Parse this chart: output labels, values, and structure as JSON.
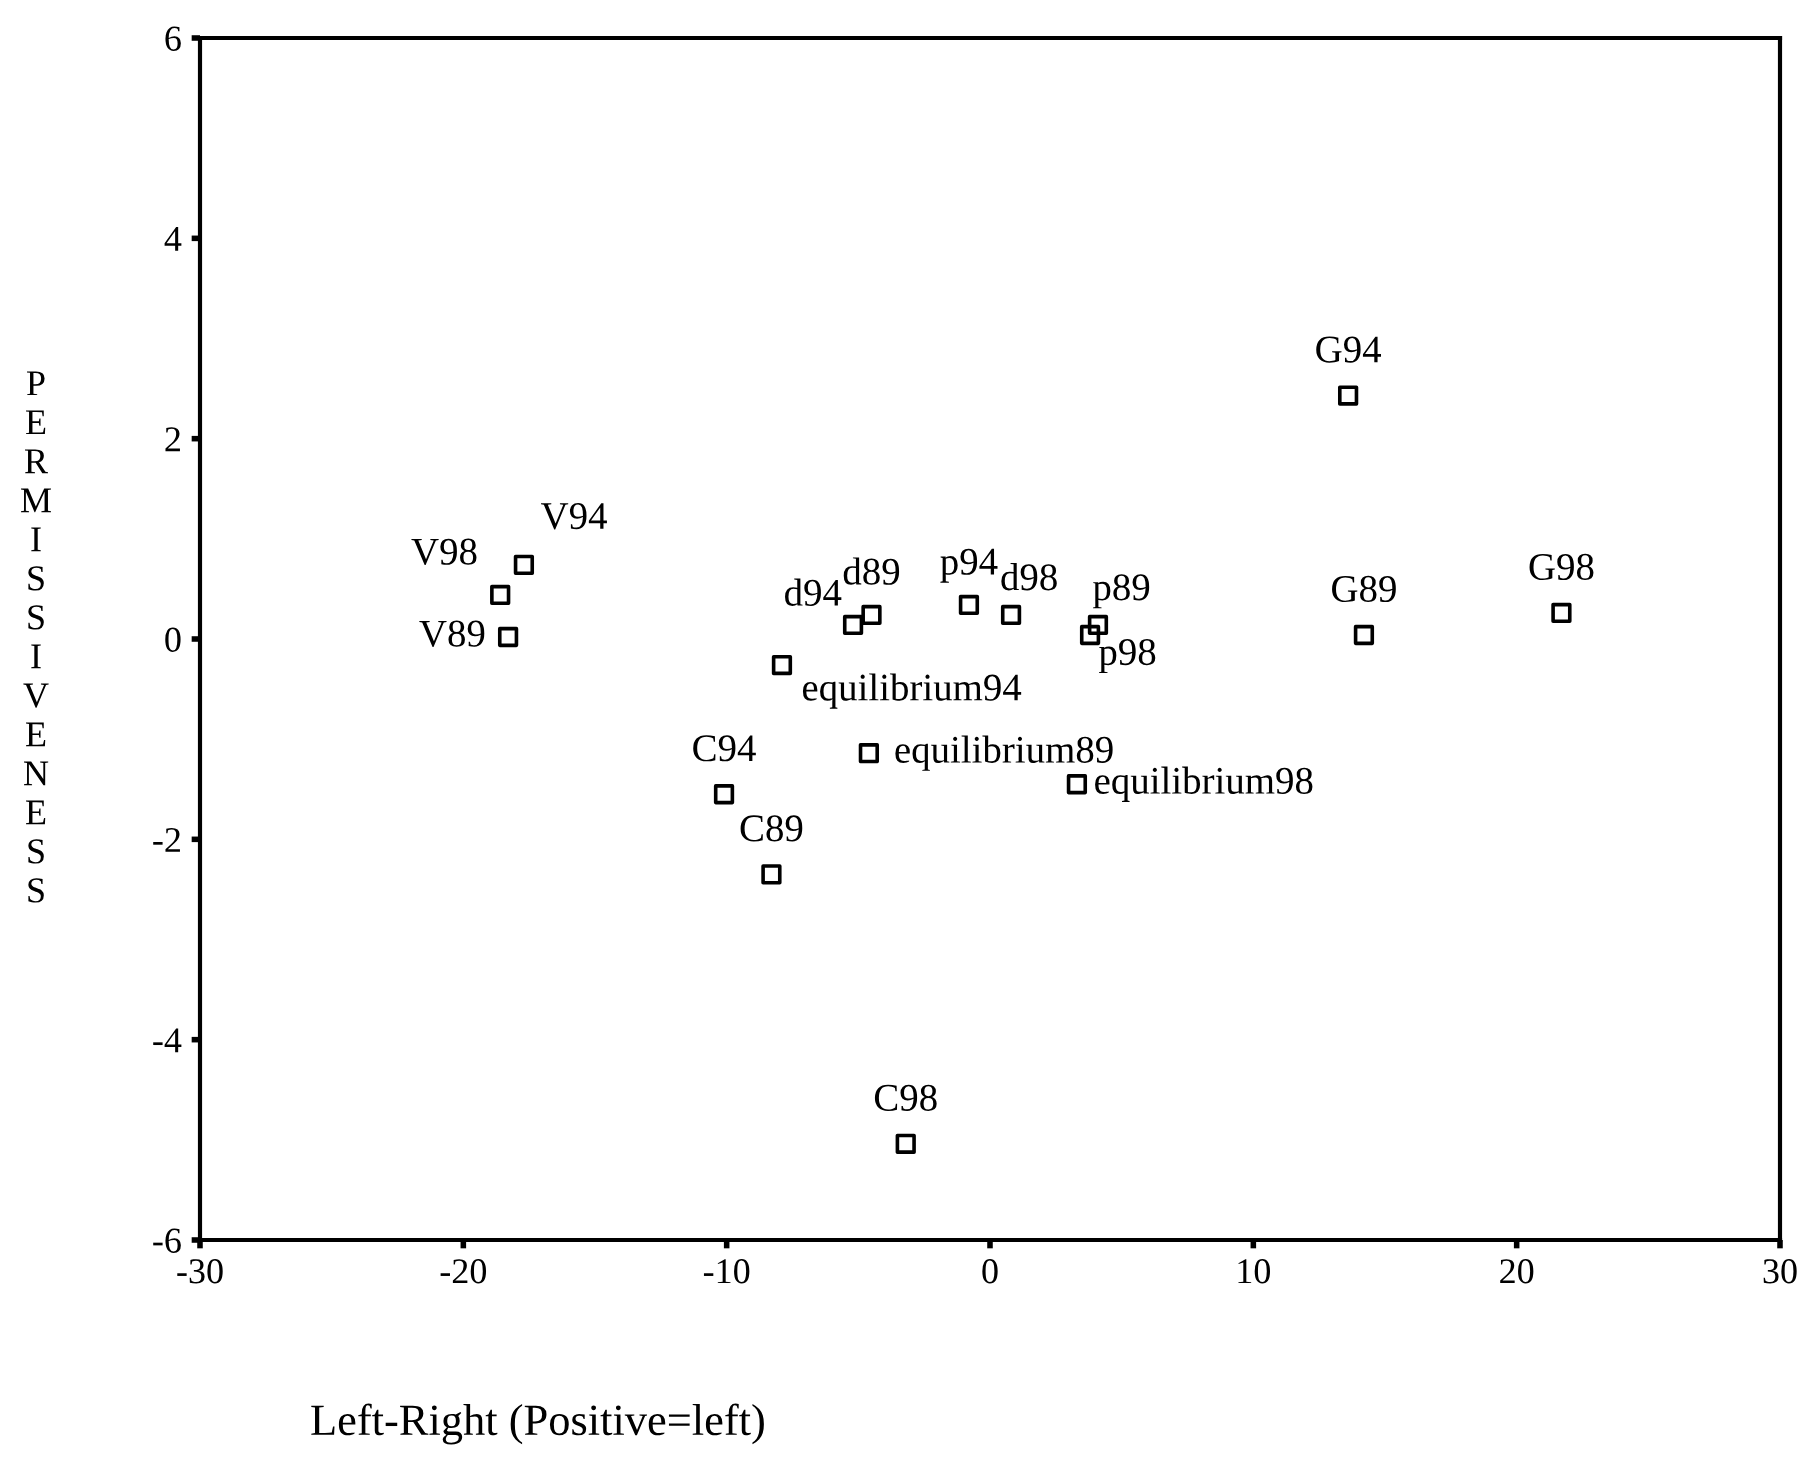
{
  "chart_data": {
    "type": "scatter",
    "xlabel": "Left-Right (Positive=left)",
    "ylabel": "PERMISSIVENESS",
    "marker": "square",
    "grid": false,
    "legend": false,
    "xlim": [
      -30,
      30
    ],
    "xticks": [
      -30,
      -20,
      -10,
      0,
      10,
      20,
      30
    ],
    "ylim": [
      -6,
      6
    ],
    "yticks": [
      -6,
      -4,
      -2,
      0,
      2,
      4,
      6
    ],
    "series": [
      {
        "color": "#000000",
        "x": [
          -18.6,
          -17.7,
          -18.3,
          -5.2,
          -4.5,
          -0.8,
          0.8,
          4.1,
          3.8,
          -7.9,
          -4.6,
          3.3,
          -10.1,
          -8.3,
          -3.2,
          13.6,
          14.2,
          21.7
        ],
        "values": [
          0.44,
          0.74,
          0.02,
          0.14,
          0.24,
          0.34,
          0.24,
          0.14,
          0.04,
          -0.26,
          -1.14,
          -1.45,
          -1.55,
          -2.35,
          -5.04,
          2.43,
          0.04,
          0.26
        ]
      }
    ],
    "annotations": [
      {
        "text": "V98",
        "x": -18.6,
        "y": 0.44
      },
      {
        "text": "V94",
        "x": -17.7,
        "y": 0.74
      },
      {
        "text": "V89",
        "x": -18.3,
        "y": 0.02
      },
      {
        "text": "d94",
        "x": -5.2,
        "y": 0.14
      },
      {
        "text": "d89",
        "x": -4.5,
        "y": 0.24
      },
      {
        "text": "p94",
        "x": -0.8,
        "y": 0.34
      },
      {
        "text": "d98",
        "x": 0.8,
        "y": 0.24
      },
      {
        "text": "p89",
        "x": 4.1,
        "y": 0.14
      },
      {
        "text": "p98",
        "x": 3.8,
        "y": 0.04
      },
      {
        "text": "equilibrium94",
        "x": -7.9,
        "y": -0.26
      },
      {
        "text": "equilibrium89",
        "x": -4.6,
        "y": -1.14
      },
      {
        "text": "equilibrium98",
        "x": 3.3,
        "y": -1.45
      },
      {
        "text": "C94",
        "x": -10.1,
        "y": -1.55
      },
      {
        "text": "C89",
        "x": -8.3,
        "y": -2.35
      },
      {
        "text": "C98",
        "x": -3.2,
        "y": -5.04
      },
      {
        "text": "G94",
        "x": 13.6,
        "y": 2.43
      },
      {
        "text": "G89",
        "x": 14.2,
        "y": 0.04
      },
      {
        "text": "G98",
        "x": 21.7,
        "y": 0.26
      }
    ]
  }
}
